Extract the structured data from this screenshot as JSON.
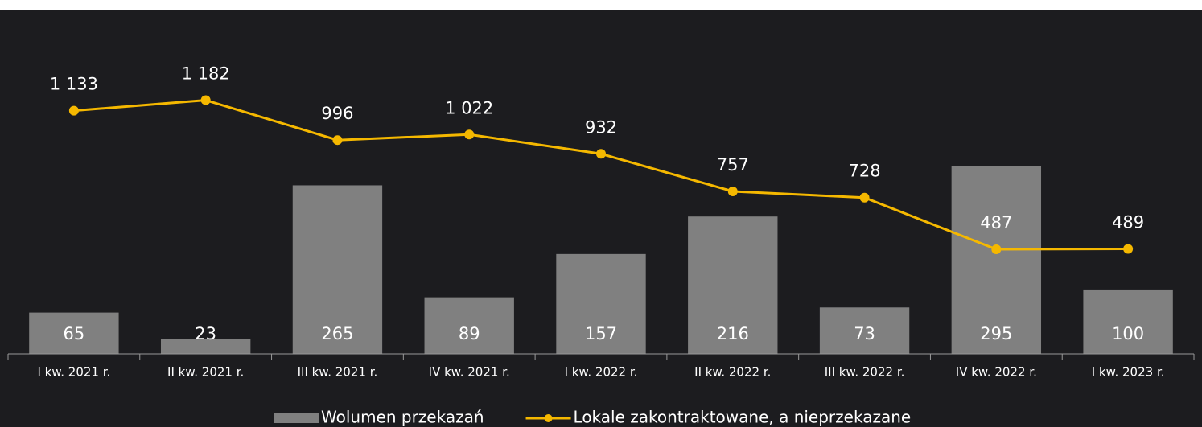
{
  "chart_data": {
    "type": "bar",
    "categories": [
      "I kw. 2021 r.",
      "II kw. 2021 r.",
      "III kw. 2021 r.",
      "IV kw. 2021 r.",
      "I kw. 2022 r.",
      "II kw. 2022 r.",
      "III kw. 2022 r.",
      "IV kw. 2022 r.",
      "I kw. 2023 r."
    ],
    "series": [
      {
        "name": "Wolumen przekazań",
        "type": "bar",
        "color": "#808080",
        "values": [
          65,
          23,
          265,
          89,
          157,
          216,
          73,
          295,
          100
        ]
      },
      {
        "name": "Lokale zakontraktowane, a nieprzekazane",
        "type": "line",
        "axis": "y2",
        "color": "#f5b800",
        "values": [
          1133,
          1182,
          996,
          1022,
          932,
          757,
          728,
          487,
          489
        ],
        "value_labels": [
          "1 133",
          "1 182",
          "996",
          "1 022",
          "932",
          "757",
          "728",
          "487",
          "489"
        ]
      }
    ],
    "ylim": [
      0,
      540
    ],
    "y2lim": [
      0,
      1600
    ],
    "legend": "bottom"
  }
}
